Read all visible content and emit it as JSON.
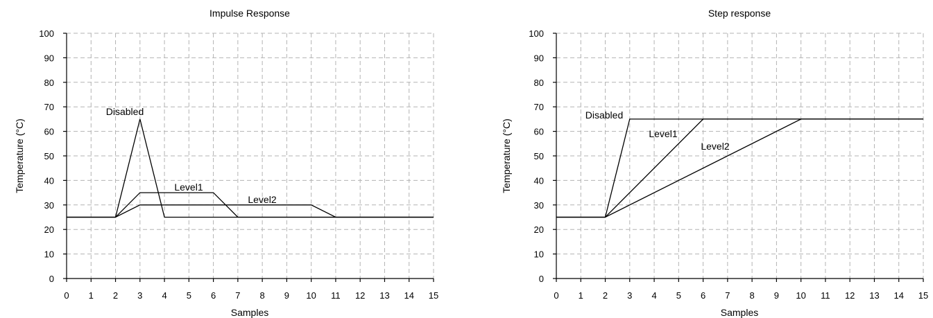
{
  "chart_data": [
    {
      "type": "line",
      "title": "Impulse Response",
      "xlabel": "Samples",
      "ylabel": "Temperature (°C)",
      "xlim": [
        0,
        15
      ],
      "ylim": [
        0,
        100
      ],
      "xticks": [
        0,
        1,
        2,
        3,
        4,
        5,
        6,
        7,
        8,
        9,
        10,
        11,
        12,
        13,
        14,
        15
      ],
      "yticks": [
        0,
        10,
        20,
        30,
        40,
        50,
        60,
        70,
        80,
        90,
        100
      ],
      "grid": true,
      "series": [
        {
          "name": "Disabled",
          "x": [
            0,
            2,
            3,
            4,
            15
          ],
          "y": [
            25,
            25,
            65,
            25,
            25
          ]
        },
        {
          "name": "Level1",
          "x": [
            0,
            2,
            3,
            6,
            7,
            15
          ],
          "y": [
            25,
            25,
            35,
            35,
            25,
            25
          ]
        },
        {
          "name": "Level2",
          "x": [
            0,
            2,
            3,
            10,
            11,
            15
          ],
          "y": [
            25,
            25,
            30,
            30,
            25,
            25
          ]
        }
      ]
    },
    {
      "type": "line",
      "title": "Step response",
      "xlabel": "Samples",
      "ylabel": "Temperature (°C)",
      "xlim": [
        0,
        15
      ],
      "ylim": [
        0,
        100
      ],
      "xticks": [
        0,
        1,
        2,
        3,
        4,
        5,
        6,
        7,
        8,
        9,
        10,
        11,
        12,
        13,
        14,
        15
      ],
      "yticks": [
        0,
        10,
        20,
        30,
        40,
        50,
        60,
        70,
        80,
        90,
        100
      ],
      "grid": true,
      "series": [
        {
          "name": "Disabled",
          "x": [
            0,
            2,
            3,
            15
          ],
          "y": [
            25,
            25,
            65,
            65
          ]
        },
        {
          "name": "Level1",
          "x": [
            0,
            2,
            6,
            15
          ],
          "y": [
            25,
            25,
            65,
            65
          ]
        },
        {
          "name": "Level2",
          "x": [
            0,
            2,
            10,
            15
          ],
          "y": [
            25,
            25,
            65,
            65
          ]
        }
      ]
    }
  ]
}
